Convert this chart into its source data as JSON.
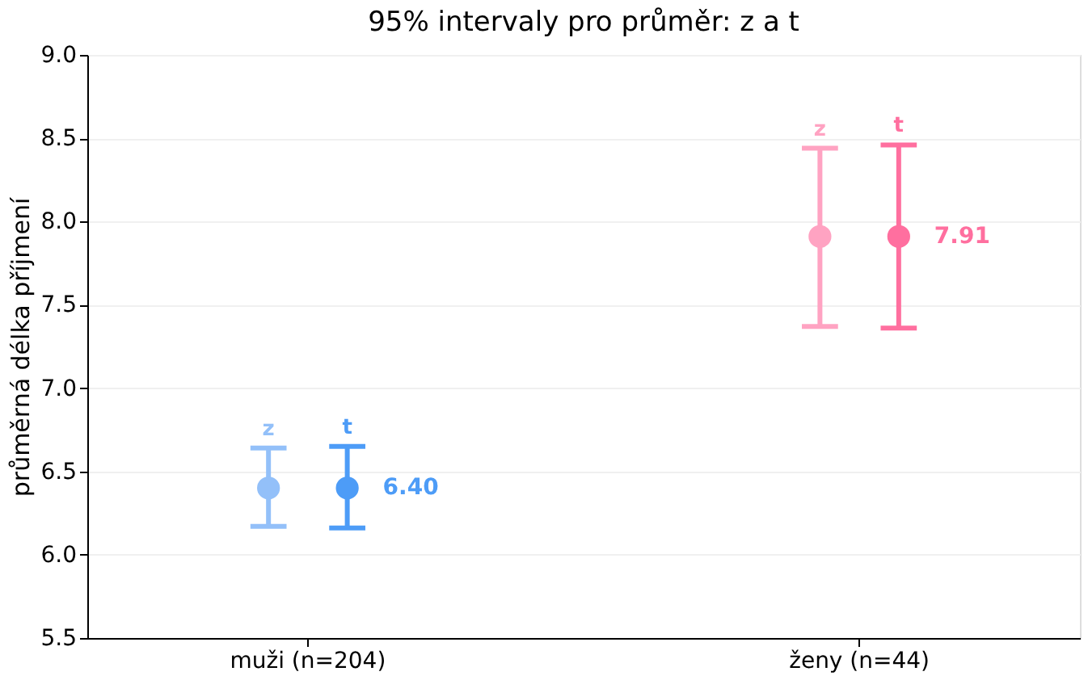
{
  "chart_data": {
    "type": "scatter",
    "title": "95% intervaly pro průměr: z a t",
    "ylabel": "průměrná délka příjmení",
    "categories": [
      "muži (n=204)",
      "ženy (n=44)"
    ],
    "series": [
      {
        "name": "z",
        "colors": [
          "#93c0f9",
          "#ffa3c2"
        ],
        "values": [
          6.4,
          7.91
        ],
        "errors": [
          [
            6.17,
            6.64
          ],
          [
            7.37,
            8.44
          ]
        ]
      },
      {
        "name": "t",
        "colors": [
          "#4d9cf7",
          "#ff6f9f"
        ],
        "values": [
          6.4,
          7.91
        ],
        "errors": [
          [
            6.16,
            6.65
          ],
          [
            7.36,
            8.46
          ]
        ],
        "value_labels": [
          "6.40",
          "7.91"
        ]
      }
    ],
    "ylim": [
      5.5,
      9.0
    ],
    "yticks": [
      5.5,
      {
        "value": 6,
        "label": "6.0"
      },
      6.5,
      {
        "value": 7,
        "label": "7.0"
      },
      7.5,
      {
        "value": 8,
        "label": "8.0"
      },
      8.5,
      {
        "value": 9,
        "label": "9.0"
      }
    ],
    "grid": "y",
    "marker": "circle"
  }
}
